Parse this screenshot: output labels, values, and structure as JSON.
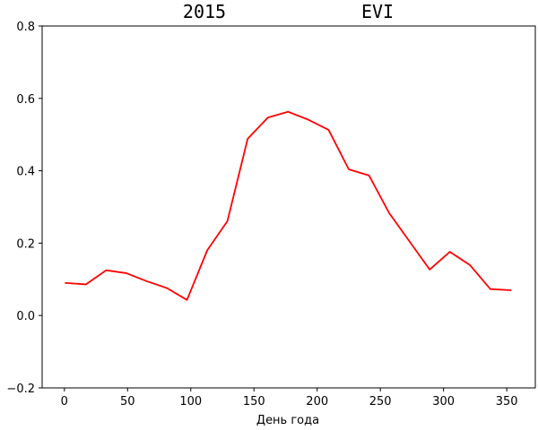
{
  "chart_data": {
    "type": "line",
    "title_left": "2015",
    "title_right": "EVI",
    "xlabel": "День года",
    "ylabel": "",
    "xlim": [
      -17.6,
      372.6
    ],
    "ylim": [
      -0.2,
      0.8
    ],
    "xticks": [
      0,
      50,
      100,
      150,
      200,
      250,
      300,
      350
    ],
    "xtick_labels": [
      "0",
      "50",
      "100",
      "150",
      "200",
      "250",
      "300",
      "350"
    ],
    "yticks": [
      -0.2,
      0.0,
      0.2,
      0.4,
      0.6,
      0.8
    ],
    "ytick_labels": [
      "−0.2",
      "0.0",
      "0.2",
      "0.4",
      "0.6",
      "0.8"
    ],
    "grid": false,
    "series": [
      {
        "color": "#ff0000",
        "x": [
          1,
          17,
          33,
          49,
          65,
          81,
          97,
          113,
          129,
          145,
          161,
          177,
          193,
          209,
          225,
          241,
          257,
          273,
          289,
          305,
          321,
          337,
          353
        ],
        "y": [
          0.09,
          0.086,
          0.125,
          0.117,
          0.095,
          0.076,
          0.043,
          0.18,
          0.261,
          0.488,
          0.547,
          0.563,
          0.541,
          0.513,
          0.404,
          0.387,
          0.283,
          0.205,
          0.127,
          0.176,
          0.139,
          0.073,
          0.07
        ]
      }
    ]
  }
}
